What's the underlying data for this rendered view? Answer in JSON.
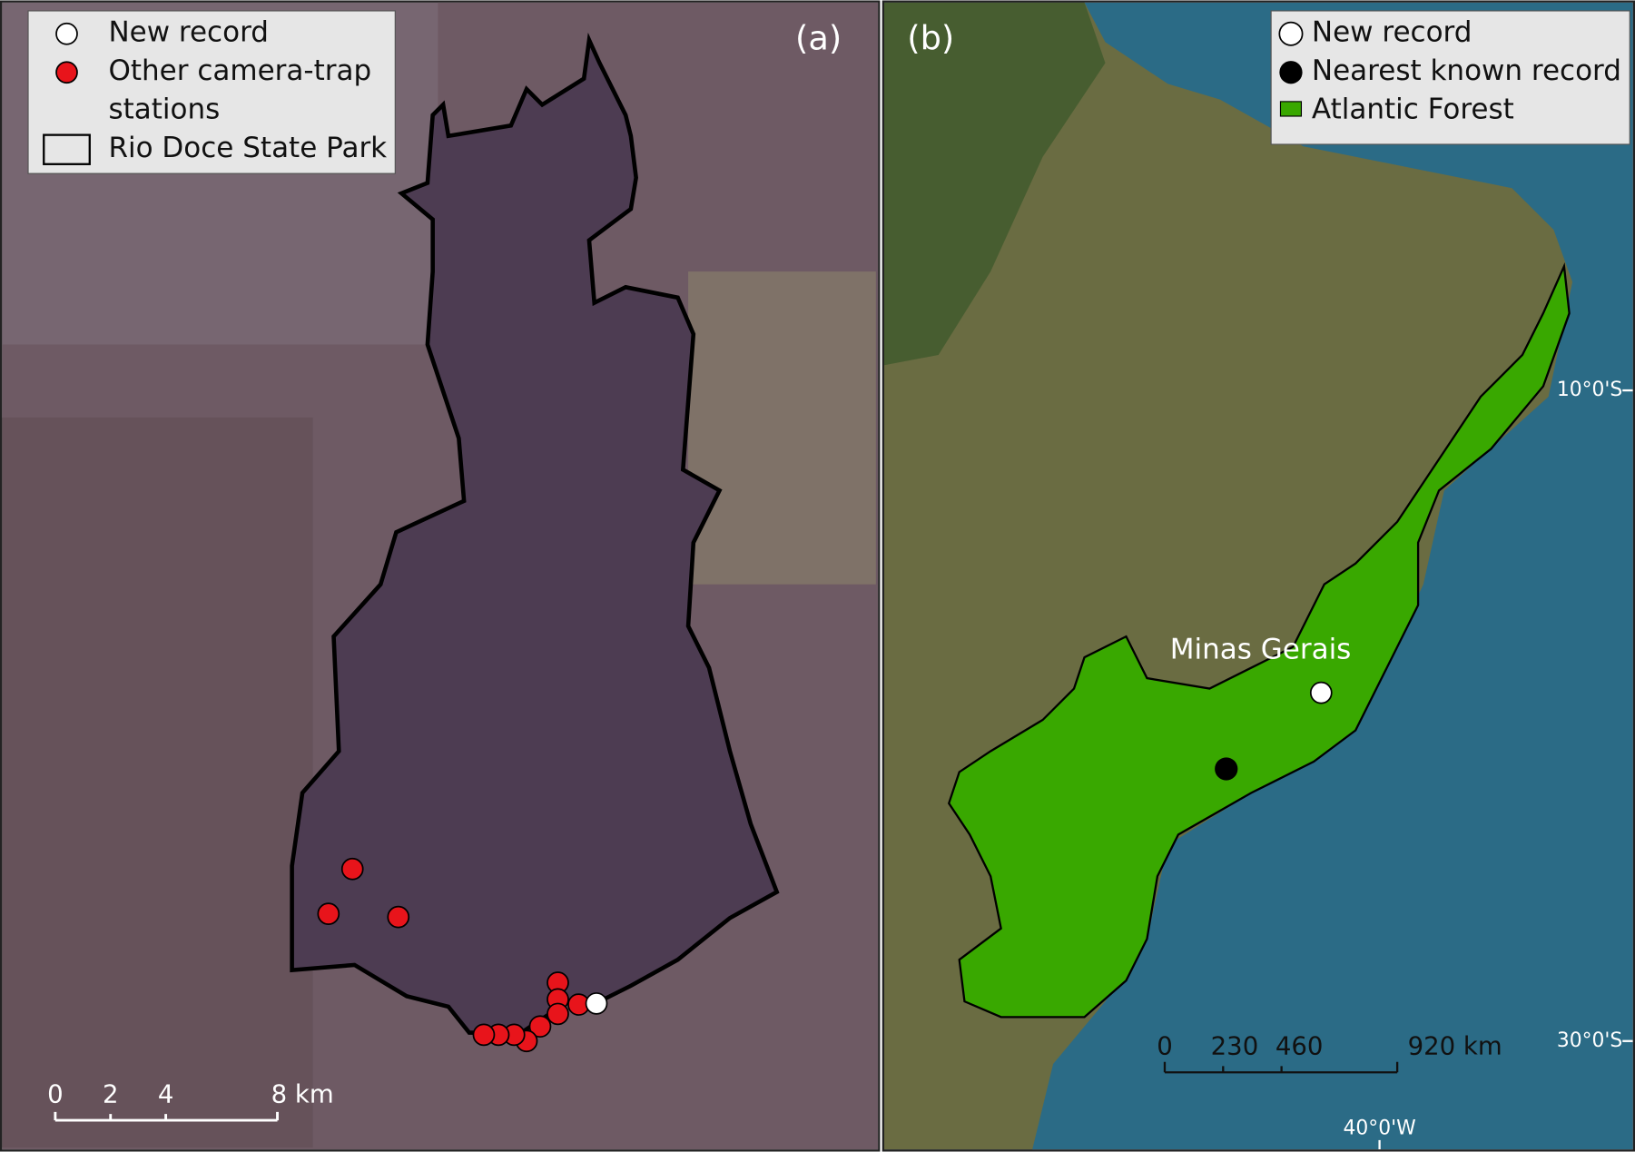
{
  "panel_a": {
    "label": "(a)",
    "legend": {
      "items": [
        "New record",
        "Other camera-trap",
        "stations",
        "Rio Doce State Park"
      ]
    },
    "scale_bar": {
      "labels": [
        "0",
        "2",
        "4",
        "8 km"
      ]
    }
  },
  "panel_b": {
    "label": "(b)",
    "legend": {
      "items": [
        "New record",
        "Nearest known record",
        "Atlantic Forest"
      ]
    },
    "place_label": "Minas Gerais",
    "scale_bar": {
      "labels": [
        "0",
        "230",
        "460",
        "920 km"
      ]
    },
    "latitude_labels": [
      "10°0'S",
      "30°0'S"
    ],
    "longitude_labels": [
      "40°0'W"
    ]
  }
}
